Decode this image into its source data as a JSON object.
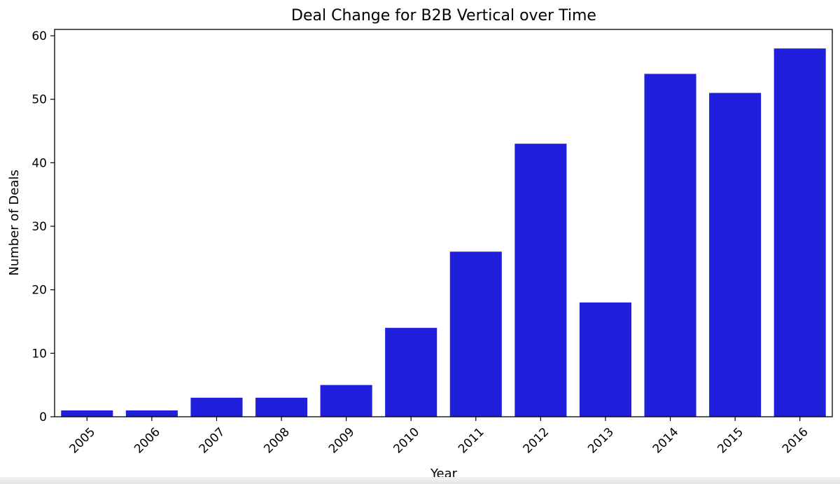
{
  "chart_data": {
    "type": "bar",
    "title": "Deal Change for B2B Vertical over Time",
    "xlabel": "Year",
    "ylabel": "Number of Deals",
    "categories": [
      "2005",
      "2006",
      "2007",
      "2008",
      "2009",
      "2010",
      "2011",
      "2012",
      "2013",
      "2014",
      "2015",
      "2016"
    ],
    "values": [
      1,
      1,
      3,
      3,
      5,
      14,
      26,
      43,
      18,
      54,
      51,
      58
    ],
    "ylim": [
      0,
      61
    ],
    "yticks": [
      0,
      10,
      20,
      30,
      40,
      50,
      60
    ],
    "bar_color": "#1f1fdc",
    "grid": false,
    "legend": "none"
  }
}
